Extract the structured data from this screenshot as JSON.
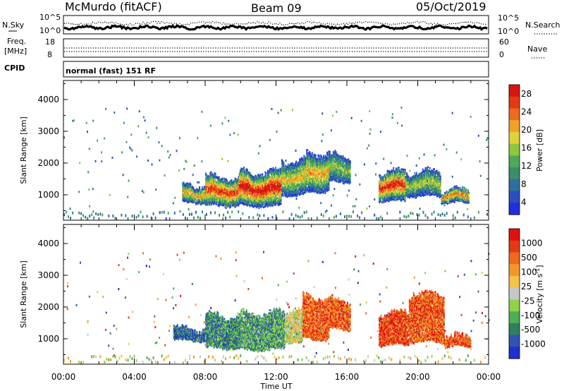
{
  "header": {
    "station": "McMurdo (fitACF)",
    "beam": "Beam 09",
    "date": "05/Oct/2019"
  },
  "strip_panels": {
    "nsky_label": "N.Sky",
    "nsky_ticks": [
      "10^5",
      "10^0"
    ],
    "nsearch_label": "N.Search",
    "nsearch_ticks": [
      "10^5",
      "10^0"
    ],
    "freq_label_1": "Freq.",
    "freq_label_2": "[MHz]",
    "freq_ticks": [
      "18",
      "8"
    ],
    "nave_label": "Nave",
    "nave_ticks": [
      "60",
      "0"
    ],
    "cpid_label": "CPID",
    "cpid_text": "normal (fast) 151 RF"
  },
  "chart_data": [
    {
      "type": "heatmap",
      "title": "",
      "xlabel": "",
      "ylabel": "Slant Range [km]",
      "xlim": [
        0,
        24
      ],
      "ylim": [
        200,
        4600
      ],
      "y_ticks": [
        1000,
        2000,
        3000,
        4000
      ],
      "colorbar_label": "Power [dB]",
      "colorbar_ticks": [
        "4",
        "8",
        "12",
        "16",
        "20",
        "24",
        "28"
      ],
      "colorbar_colors": [
        "#1f2fe0",
        "#2a4fbf",
        "#2f6fa0",
        "#3b8e6a",
        "#4fa85a",
        "#8fc63c",
        "#e0d23a",
        "#f0a12a",
        "#ee6a1e",
        "#e23a16",
        "#d8160f"
      ],
      "echo_regions": [
        {
          "t0": 6.7,
          "t1": 8.0,
          "r0": 750,
          "r1": 1300,
          "level": 0.6
        },
        {
          "t0": 8.0,
          "t1": 9.9,
          "r0": 650,
          "r1": 1550,
          "level": 0.8
        },
        {
          "t0": 9.9,
          "t1": 12.3,
          "r0": 650,
          "r1": 1700,
          "level": 0.9
        },
        {
          "t0": 12.3,
          "t1": 13.7,
          "r0": 1000,
          "r1": 2050,
          "level": 0.55
        },
        {
          "t0": 13.7,
          "t1": 15.0,
          "r0": 1100,
          "r1": 2300,
          "level": 0.6
        },
        {
          "t0": 15.0,
          "t1": 16.2,
          "r0": 1400,
          "r1": 2200,
          "level": 0.4
        },
        {
          "t0": 17.8,
          "t1": 19.3,
          "r0": 800,
          "r1": 1700,
          "level": 0.85
        },
        {
          "t0": 19.3,
          "t1": 21.3,
          "r0": 950,
          "r1": 1700,
          "level": 0.45
        },
        {
          "t0": 21.3,
          "t1": 22.9,
          "r0": 750,
          "r1": 1100,
          "level": 0.7
        }
      ]
    },
    {
      "type": "heatmap",
      "title": "",
      "xlabel": "Time UT",
      "ylabel": "Slant Range [km]",
      "xlim": [
        0,
        24
      ],
      "ylim": [
        200,
        4600
      ],
      "x_ticks": [
        "00:00",
        "04:00",
        "08:00",
        "12:00",
        "16:00",
        "20:00",
        "00:00"
      ],
      "y_ticks": [
        1000,
        2000,
        3000,
        4000
      ],
      "colorbar_label": "Velocity [m s-1]",
      "colorbar_ticks": [
        "1000",
        "500",
        "100",
        "25",
        "-25",
        "-100",
        "-500",
        "-1000"
      ],
      "colorbar_colors": [
        "#1f2fd0",
        "#2f55b0",
        "#2f7f60",
        "#4fae58",
        "#8fd34a",
        "#c8c8c8",
        "#f2c24a",
        "#f0992a",
        "#ee6a1e",
        "#e23a16",
        "#e01010"
      ],
      "echo_regions": [
        {
          "t0": 6.2,
          "t1": 8.0,
          "r0": 950,
          "r1": 1300,
          "level": 0.15
        },
        {
          "t0": 8.0,
          "t1": 10.0,
          "r0": 700,
          "r1": 1700,
          "level": 0.25
        },
        {
          "t0": 10.0,
          "t1": 12.5,
          "r0": 650,
          "r1": 1800,
          "level": 0.3
        },
        {
          "t0": 12.5,
          "t1": 13.5,
          "r0": 900,
          "r1": 1900,
          "level": 0.5
        },
        {
          "t0": 13.5,
          "t1": 15.0,
          "r0": 1000,
          "r1": 2300,
          "level": 0.8
        },
        {
          "t0": 15.0,
          "t1": 16.2,
          "r0": 1300,
          "r1": 2200,
          "level": 0.8
        },
        {
          "t0": 17.8,
          "t1": 19.5,
          "r0": 800,
          "r1": 1800,
          "level": 0.85
        },
        {
          "t0": 19.5,
          "t1": 21.5,
          "r0": 900,
          "r1": 2400,
          "level": 0.8
        },
        {
          "t0": 21.5,
          "t1": 23.0,
          "r0": 750,
          "r1": 1050,
          "level": 0.8
        }
      ]
    }
  ]
}
